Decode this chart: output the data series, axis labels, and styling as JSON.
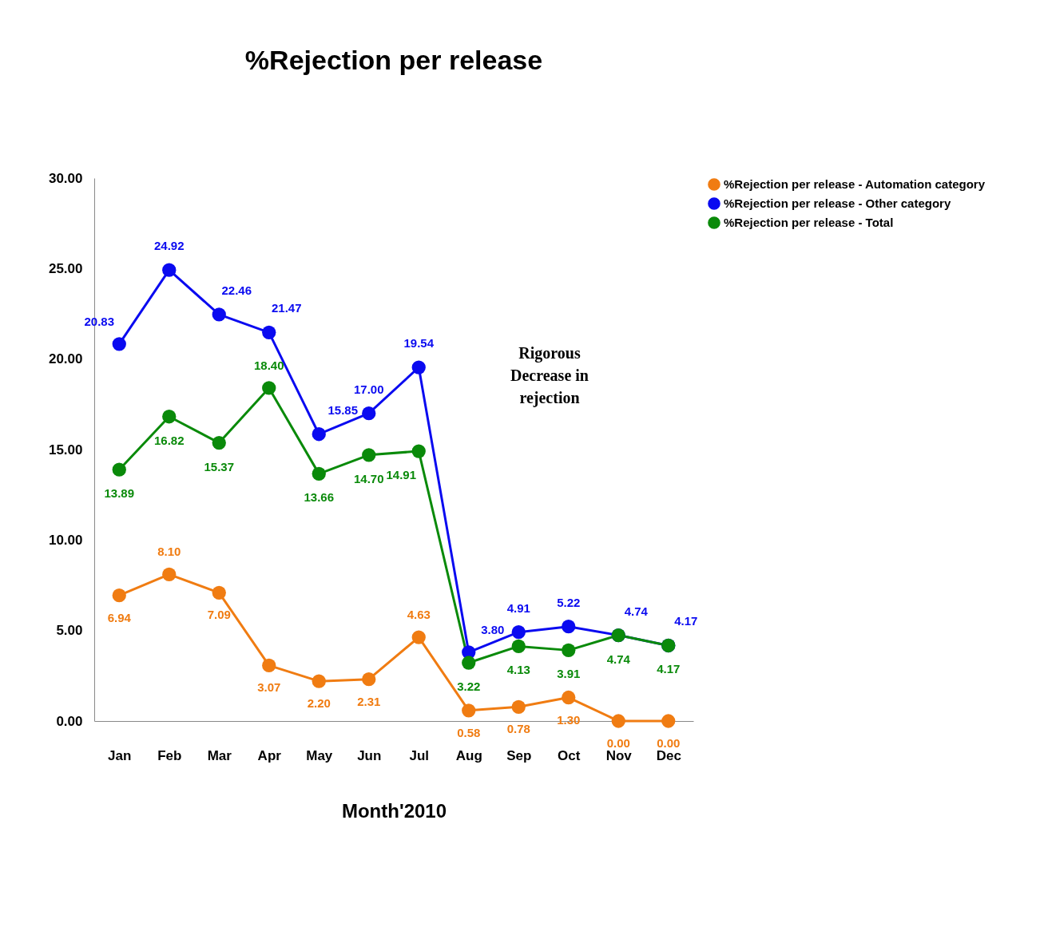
{
  "chart_data": {
    "type": "line",
    "title": "%Rejection per release",
    "xlabel": "Month'2010",
    "categories": [
      "Jan",
      "Feb",
      "Mar",
      "Apr",
      "May",
      "Jun",
      "Jul",
      "Aug",
      "Sep",
      "Oct",
      "Nov",
      "Dec"
    ],
    "series": [
      {
        "name": "%Rejection per release - Automation category",
        "color": "#f07c12",
        "values": [
          6.94,
          8.1,
          7.09,
          3.07,
          2.2,
          2.31,
          4.63,
          0.58,
          0.78,
          1.3,
          0.0,
          0.0
        ],
        "value_labels": [
          "6.94",
          "8.10",
          "7.09",
          "3.07",
          "2.20",
          "2.31",
          "4.63",
          "0.58",
          "0.78",
          "1.30",
          "0.00",
          "0.00"
        ]
      },
      {
        "name": "%Rejection per release - Other category",
        "color": "#0a0af0",
        "values": [
          20.83,
          24.92,
          22.46,
          21.47,
          15.85,
          17.0,
          19.54,
          3.8,
          4.91,
          5.22,
          4.74,
          4.17
        ],
        "value_labels": [
          "20.83",
          "24.92",
          "22.46",
          "21.47",
          "15.85",
          "17.00",
          "19.54",
          "3.80",
          "4.91",
          "5.22",
          "4.74",
          "4.17"
        ]
      },
      {
        "name": "%Rejection per release - Total",
        "color": "#0a8a0a",
        "values": [
          13.89,
          16.82,
          15.37,
          18.4,
          13.66,
          14.7,
          14.91,
          3.22,
          4.13,
          3.91,
          4.74,
          4.17
        ],
        "value_labels": [
          "13.89",
          "16.82",
          "15.37",
          "18.40",
          "13.66",
          "14.70",
          "14.91",
          "3.22",
          "4.13",
          "3.91",
          "4.74",
          "4.17"
        ]
      }
    ],
    "ylim": [
      0,
      30
    ],
    "yticks": [
      {
        "value": 0,
        "label": "0.00"
      },
      {
        "value": 5,
        "label": "5.00"
      },
      {
        "value": 10,
        "label": "10.00"
      },
      {
        "value": 15,
        "label": "15.00"
      },
      {
        "value": 20,
        "label": "20.00"
      },
      {
        "value": 25,
        "label": "25.00"
      },
      {
        "value": 30,
        "label": "30.00"
      }
    ],
    "annotations": [
      "Rigorous Decrease in rejection"
    ],
    "grid": false,
    "legend": "right",
    "marker": "circle",
    "line_style": "solid"
  }
}
